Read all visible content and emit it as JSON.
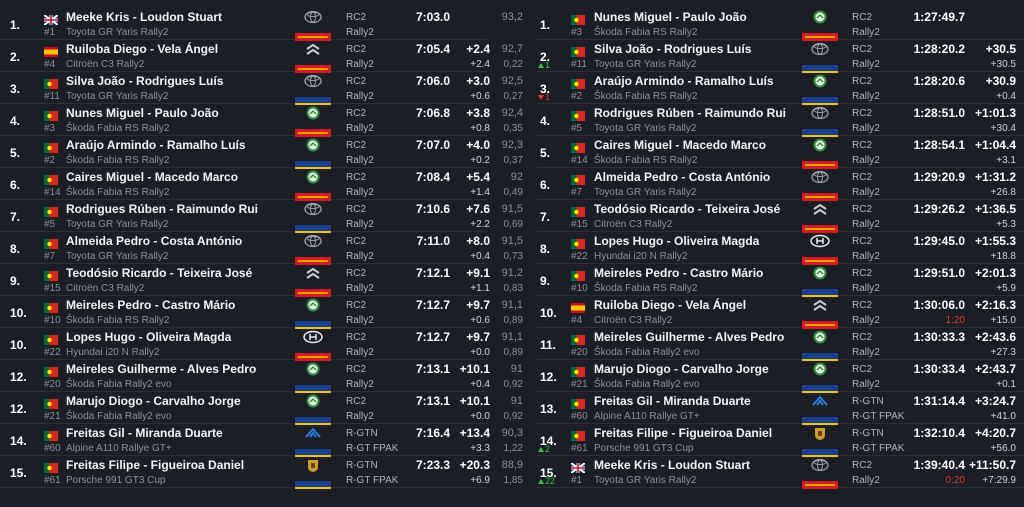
{
  "tables": [
    {
      "rows": [
        {
          "pos": "1.",
          "flag": "GB",
          "name": "Meeke Kris - Loudon Stuart",
          "number": "#1",
          "car": "Toyota GR Yaris Rally2",
          "logo": "toyota",
          "tyre": "pirelli",
          "class": "RC2",
          "category": "Rally2",
          "time": "7:03.0",
          "speed": "93,2"
        },
        {
          "pos": "2.",
          "flag": "ES",
          "name": "Ruiloba Diego - Vela Ángel",
          "number": "#4",
          "car": "Citroën C3 Rally2",
          "logo": "citroen",
          "tyre": "pirelli",
          "class": "RC2",
          "category": "Rally2",
          "time": "7:05.4",
          "gap": "+2.4",
          "diff": "+2.4",
          "speed": "92,7",
          "sec": "0,22",
          "change": "1",
          "trend": "up"
        },
        {
          "pos": "3.",
          "flag": "PT",
          "name": "Silva João - Rodrigues Luís",
          "number": "#11",
          "car": "Toyota GR Yaris Rally2",
          "logo": "toyota",
          "tyre": "michelin",
          "class": "RC2",
          "category": "Rally2",
          "time": "7:06.0",
          "gap": "+3.0",
          "diff": "+0.6",
          "speed": "92,5",
          "sec": "0,27",
          "change": "1",
          "trend": "down"
        },
        {
          "pos": "4.",
          "flag": "PT",
          "name": "Nunes Miguel - Paulo João",
          "number": "#3",
          "car": "Škoda Fabia RS Rally2",
          "logo": "skoda",
          "tyre": "pirelli",
          "class": "RC2",
          "category": "Rally2",
          "time": "7:06.8",
          "gap": "+3.8",
          "diff": "+0.8",
          "speed": "92,4",
          "sec": "0,35"
        },
        {
          "pos": "5.",
          "flag": "PT",
          "name": "Araújo Armindo - Ramalho Luís",
          "number": "#2",
          "car": "Škoda Fabia RS Rally2",
          "logo": "skoda",
          "tyre": "michelin",
          "class": "RC2",
          "category": "Rally2",
          "time": "7:07.0",
          "gap": "+4.0",
          "diff": "+0.2",
          "speed": "92,3",
          "sec": "0,37"
        },
        {
          "pos": "6.",
          "flag": "PT",
          "name": "Caires Miguel - Macedo Marco",
          "number": "#14",
          "car": "Škoda Fabia RS Rally2",
          "logo": "skoda",
          "tyre": "pirelli",
          "class": "RC2",
          "category": "Rally2",
          "time": "7:08.4",
          "gap": "+5.4",
          "diff": "+1.4",
          "speed": "92",
          "sec": "0,49"
        },
        {
          "pos": "7.",
          "flag": "PT",
          "name": "Rodrigues Rúben - Raimundo Rui",
          "number": "#5",
          "car": "Toyota GR Yaris Rally2",
          "logo": "toyota",
          "tyre": "michelin",
          "class": "RC2",
          "category": "Rally2",
          "time": "7:10.6",
          "gap": "+7.6",
          "diff": "+2.2",
          "speed": "91,5",
          "sec": "0,69"
        },
        {
          "pos": "8.",
          "flag": "PT",
          "name": "Almeida Pedro - Costa António",
          "number": "#7",
          "car": "Toyota GR Yaris Rally2",
          "logo": "toyota",
          "tyre": "pirelli",
          "class": "RC2",
          "category": "Rally2",
          "time": "7:11.0",
          "gap": "+8.0",
          "diff": "+0.4",
          "speed": "91,5",
          "sec": "0,73"
        },
        {
          "pos": "9.",
          "flag": "PT",
          "name": "Teodósio Ricardo - Teixeira José",
          "number": "#15",
          "car": "Citroën C3 Rally2",
          "logo": "citroen",
          "tyre": "pirelli",
          "class": "RC2",
          "category": "Rally2",
          "time": "7:12.1",
          "gap": "+9.1",
          "diff": "+1.1",
          "speed": "91,2",
          "sec": "0,83"
        },
        {
          "pos": "10.",
          "flag": "PT",
          "name": "Meireles Pedro - Castro Mário",
          "number": "#10",
          "car": "Škoda Fabia RS Rally2",
          "logo": "skoda",
          "tyre": "michelin",
          "class": "RC2",
          "category": "Rally2",
          "time": "7:12.7",
          "gap": "+9.7",
          "diff": "+0.6",
          "speed": "91,1",
          "sec": "0,89"
        },
        {
          "pos": "10.",
          "flag": "PT",
          "name": "Lopes Hugo - Oliveira Magda",
          "number": "#22",
          "car": "Hyundai i20 N Rally2",
          "logo": "hyundai",
          "tyre": "pirelli",
          "class": "RC2",
          "category": "Rally2",
          "time": "7:12.7",
          "gap": "+9.7",
          "diff": "+0.0",
          "speed": "91,1",
          "sec": "0,89"
        },
        {
          "pos": "12.",
          "flag": "PT",
          "name": "Meireles Guilherme - Alves Pedro",
          "number": "#20",
          "car": "Škoda Fabia Rally2 evo",
          "logo": "skoda",
          "tyre": "michelin",
          "class": "RC2",
          "category": "Rally2",
          "time": "7:13.1",
          "gap": "+10.1",
          "diff": "+0.4",
          "speed": "91",
          "sec": "0,92"
        },
        {
          "pos": "12.",
          "flag": "PT",
          "name": "Marujo Diogo - Carvalho Jorge",
          "number": "#21",
          "car": "Škoda Fabia Rally2 evo",
          "logo": "skoda",
          "tyre": "michelin",
          "class": "RC2",
          "category": "Rally2",
          "time": "7:13.1",
          "gap": "+10.1",
          "diff": "+0.0",
          "speed": "91",
          "sec": "0,92"
        },
        {
          "pos": "14.",
          "flag": "PT",
          "name": "Freitas Gil - Miranda Duarte",
          "number": "#60",
          "car": "Alpine A110 Rallye GT+",
          "logo": "alpine",
          "tyre": "michelin",
          "class": "R-GTN",
          "category": "R-GT FPAK",
          "time": "7:16.4",
          "gap": "+13.4",
          "diff": "+3.3",
          "speed": "90,3",
          "sec": "1,22",
          "change": "2",
          "trend": "up"
        },
        {
          "pos": "15.",
          "flag": "PT",
          "name": "Freitas Filipe - Figueiroa Daniel",
          "number": "#61",
          "car": "Porsche 991 GT3 Cup",
          "logo": "porsche",
          "tyre": "michelin",
          "class": "R-GTN",
          "category": "R-GT FPAK",
          "time": "7:23.3",
          "gap": "+20.3",
          "diff": "+6.9",
          "speed": "88,9",
          "sec": "1,85",
          "change": "22",
          "trend": "up"
        }
      ]
    },
    {
      "rows": [
        {
          "pos": "1.",
          "flag": "PT",
          "name": "Nunes Miguel - Paulo João",
          "number": "#3",
          "car": "Škoda Fabia RS Rally2",
          "logo": "skoda",
          "tyre": "pirelli",
          "class": "RC2",
          "category": "Rally2",
          "time": "1:27:49.7"
        },
        {
          "pos": "2.",
          "flag": "PT",
          "name": "Silva João - Rodrigues Luís",
          "number": "#11",
          "car": "Toyota GR Yaris Rally2",
          "logo": "toyota",
          "tyre": "michelin",
          "class": "RC2",
          "category": "Rally2",
          "time": "1:28:20.2",
          "gap": "+30.5",
          "diff": "+30.5"
        },
        {
          "pos": "3.",
          "flag": "PT",
          "name": "Araújo Armindo - Ramalho Luís",
          "number": "#2",
          "car": "Škoda Fabia RS Rally2",
          "logo": "skoda",
          "tyre": "michelin",
          "class": "RC2",
          "category": "Rally2",
          "time": "1:28:20.6",
          "gap": "+30.9",
          "diff": "+0.4"
        },
        {
          "pos": "4.",
          "flag": "PT",
          "name": "Rodrigues Rúben - Raimundo Rui",
          "number": "#5",
          "car": "Toyota GR Yaris Rally2",
          "logo": "toyota",
          "tyre": "michelin",
          "class": "RC2",
          "category": "Rally2",
          "time": "1:28:51.0",
          "gap": "+1:01.3",
          "diff": "+30.4"
        },
        {
          "pos": "5.",
          "flag": "PT",
          "name": "Caires Miguel - Macedo Marco",
          "number": "#14",
          "car": "Škoda Fabia RS Rally2",
          "logo": "skoda",
          "tyre": "pirelli",
          "class": "RC2",
          "category": "Rally2",
          "time": "1:28:54.1",
          "gap": "+1:04.4",
          "diff": "+3.1"
        },
        {
          "pos": "6.",
          "flag": "PT",
          "name": "Almeida Pedro - Costa António",
          "number": "#7",
          "car": "Toyota GR Yaris Rally2",
          "logo": "toyota",
          "tyre": "pirelli",
          "class": "RC2",
          "category": "Rally2",
          "time": "1:29:20.9",
          "gap": "+1:31.2",
          "diff": "+26.8"
        },
        {
          "pos": "7.",
          "flag": "PT",
          "name": "Teodósio Ricardo - Teixeira José",
          "number": "#15",
          "car": "Citroën C3 Rally2",
          "logo": "citroen",
          "tyre": "pirelli",
          "class": "RC2",
          "category": "Rally2",
          "time": "1:29:26.2",
          "gap": "+1:36.5",
          "diff": "+5.3"
        },
        {
          "pos": "8.",
          "flag": "PT",
          "name": "Lopes Hugo - Oliveira Magda",
          "number": "#22",
          "car": "Hyundai i20 N Rally2",
          "logo": "hyundai",
          "tyre": "pirelli",
          "class": "RC2",
          "category": "Rally2",
          "time": "1:29:45.0",
          "gap": "+1:55.3",
          "diff": "+18.8"
        },
        {
          "pos": "9.",
          "flag": "PT",
          "name": "Meireles Pedro - Castro Mário",
          "number": "#10",
          "car": "Škoda Fabia RS Rally2",
          "logo": "skoda",
          "tyre": "michelin",
          "class": "RC2",
          "category": "Rally2",
          "time": "1:29:51.0",
          "gap": "+2:01.3",
          "diff": "+5.9"
        },
        {
          "pos": "10.",
          "flag": "ES",
          "name": "Ruiloba Diego - Vela Ángel",
          "number": "#4",
          "car": "Citroën C3 Rally2",
          "logo": "citroen",
          "tyre": "pirelli",
          "class": "RC2",
          "category": "Rally2",
          "time": "1:30:06.0",
          "gap": "+2:16.3",
          "penalty": "1:20",
          "diff": "+15.0"
        },
        {
          "pos": "11.",
          "flag": "PT",
          "name": "Meireles Guilherme - Alves Pedro",
          "number": "#20",
          "car": "Škoda Fabia Rally2 evo",
          "logo": "skoda",
          "tyre": "michelin",
          "class": "RC2",
          "category": "Rally2",
          "time": "1:30:33.3",
          "gap": "+2:43.6",
          "diff": "+27.3"
        },
        {
          "pos": "12.",
          "flag": "PT",
          "name": "Marujo Diogo - Carvalho Jorge",
          "number": "#21",
          "car": "Škoda Fabia Rally2 evo",
          "logo": "skoda",
          "tyre": "michelin",
          "class": "RC2",
          "category": "Rally2",
          "time": "1:30:33.4",
          "gap": "+2:43.7",
          "diff": "+0.1"
        },
        {
          "pos": "13.",
          "flag": "PT",
          "name": "Freitas Gil - Miranda Duarte",
          "number": "#60",
          "car": "Alpine A110 Rallye GT+",
          "logo": "alpine",
          "tyre": "michelin",
          "class": "R-GTN",
          "category": "R-GT FPAK",
          "time": "1:31:14.4",
          "gap": "+3:24.7",
          "diff": "+41.0"
        },
        {
          "pos": "14.",
          "flag": "PT",
          "name": "Freitas Filipe - Figueiroa Daniel",
          "number": "#61",
          "car": "Porsche 991 GT3 Cup",
          "logo": "porsche",
          "tyre": "michelin",
          "class": "R-GTN",
          "category": "R-GT FPAK",
          "time": "1:32:10.4",
          "gap": "+4:20.7",
          "diff": "+56.0"
        },
        {
          "pos": "15.",
          "flag": "GB",
          "name": "Meeke Kris - Loudon Stuart",
          "number": "#1",
          "car": "Toyota GR Yaris Rally2",
          "logo": "toyota",
          "tyre": "pirelli",
          "class": "RC2",
          "category": "Rally2",
          "time": "1:39:40.4",
          "gap": "+11:50.7",
          "penalty": "0:20",
          "diff": "+7:29.9"
        }
      ]
    }
  ]
}
